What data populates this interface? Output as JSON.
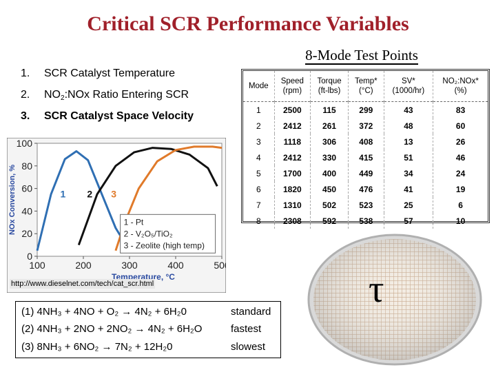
{
  "title": "Critical SCR Performance Variables",
  "subtitle": "8-Mode Test Points",
  "variables": [
    {
      "num": "1.",
      "text": "SCR Catalyst Temperature"
    },
    {
      "num": "2.",
      "text": "NO",
      "sub": "2",
      "text2": ":NOx Ratio Entering SCR"
    },
    {
      "num": "3.",
      "text": "SCR Catalyst Space Velocity"
    }
  ],
  "chart_data": {
    "type": "line",
    "xlabel": "Temperature, °C",
    "ylabel": "NOx Conversion, %",
    "xlim": [
      100,
      500
    ],
    "ylim": [
      0,
      100
    ],
    "x_ticks": [
      "100",
      "200",
      "300",
      "400",
      "500"
    ],
    "y_ticks": [
      "0",
      "20",
      "40",
      "60",
      "80",
      "100"
    ],
    "curve_labels": [
      "1",
      "2",
      "3"
    ],
    "series": [
      {
        "name": "1 - Pt",
        "color": "#2f6fb3",
        "x": [
          100,
          130,
          160,
          185,
          210,
          240,
          270,
          300
        ],
        "y": [
          5,
          55,
          86,
          93,
          85,
          55,
          25,
          5
        ]
      },
      {
        "name": "2 - V2O5/TiO2",
        "color": "#111111",
        "x": [
          190,
          230,
          270,
          310,
          350,
          390,
          430,
          470,
          490
        ],
        "y": [
          10,
          55,
          80,
          92,
          96,
          95,
          90,
          78,
          62
        ]
      },
      {
        "name": "3 - Zeolite (high temp)",
        "color": "#e07a2a",
        "x": [
          270,
          290,
          320,
          360,
          400,
          440,
          480,
          500
        ],
        "y": [
          5,
          30,
          60,
          84,
          94,
          97,
          97,
          96
        ]
      }
    ],
    "legend": [
      "1 - Pt",
      "2 - V₂O₅/TiO₂",
      "3 - Zeolite (high temp)"
    ]
  },
  "url": "http://www.dieselnet.com/tech/cat_scr.html",
  "equations": [
    {
      "text": "(1)  4NH₃ + 4NO + O₂ → 4N₂ + 6H₂0",
      "tag": "standard"
    },
    {
      "text": "(2)  4NH₃ + 2NO + 2NO₂ → 4N₂ + 6H₂O",
      "tag": "fastest"
    },
    {
      "text": "(3)  8NH₃ + 6NO₂ → 7N₂ + 12H₂0",
      "tag": "slowest"
    }
  ],
  "table": {
    "headers": [
      "Mode",
      "Speed\n(rpm)",
      "Torque\n(ft-lbs)",
      "Temp*\n(°C)",
      "SV*\n(1000/hr)",
      "NO₂:NOx*\n(%)"
    ],
    "rows": [
      [
        "1",
        "2500",
        "115",
        "299",
        "43",
        "83"
      ],
      [
        "2",
        "2412",
        "261",
        "372",
        "48",
        "60"
      ],
      [
        "3",
        "1118",
        "306",
        "408",
        "13",
        "26"
      ],
      [
        "4",
        "2412",
        "330",
        "415",
        "51",
        "46"
      ],
      [
        "5",
        "1700",
        "400",
        "449",
        "34",
        "24"
      ],
      [
        "6",
        "1820",
        "450",
        "476",
        "41",
        "19"
      ],
      [
        "7",
        "1310",
        "502",
        "523",
        "25",
        "6"
      ],
      [
        "8",
        "2308",
        "592",
        "538",
        "57",
        "10"
      ]
    ]
  },
  "symbol": "τ"
}
